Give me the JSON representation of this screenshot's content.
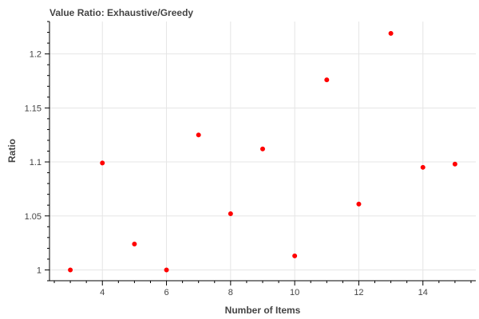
{
  "chart_data": {
    "type": "scatter",
    "title": "Value Ratio: Exhaustive/Greedy",
    "xlabel": "Number of Items",
    "ylabel": "Ratio",
    "xlim": [
      2.35,
      15.65
    ],
    "ylim": [
      0.99,
      1.23
    ],
    "x_ticks": [
      4,
      6,
      8,
      10,
      12,
      14
    ],
    "x_tick_labels": [
      "4",
      "6",
      "8",
      "10",
      "12",
      "14"
    ],
    "y_ticks": [
      1,
      1.05,
      1.1,
      1.15,
      1.2
    ],
    "y_tick_labels": [
      "1",
      "1.05",
      "1.1",
      "1.15",
      "1.2"
    ],
    "grid": true,
    "marker_color": "#ff0000",
    "points": [
      {
        "x": 3,
        "y": 1.0
      },
      {
        "x": 4,
        "y": 1.099
      },
      {
        "x": 5,
        "y": 1.024
      },
      {
        "x": 6,
        "y": 1.0
      },
      {
        "x": 7,
        "y": 1.125
      },
      {
        "x": 8,
        "y": 1.052
      },
      {
        "x": 9,
        "y": 1.112
      },
      {
        "x": 10,
        "y": 1.013
      },
      {
        "x": 11,
        "y": 1.176
      },
      {
        "x": 12,
        "y": 1.061
      },
      {
        "x": 13,
        "y": 1.219
      },
      {
        "x": 14,
        "y": 1.095
      },
      {
        "x": 15,
        "y": 1.098
      }
    ]
  }
}
